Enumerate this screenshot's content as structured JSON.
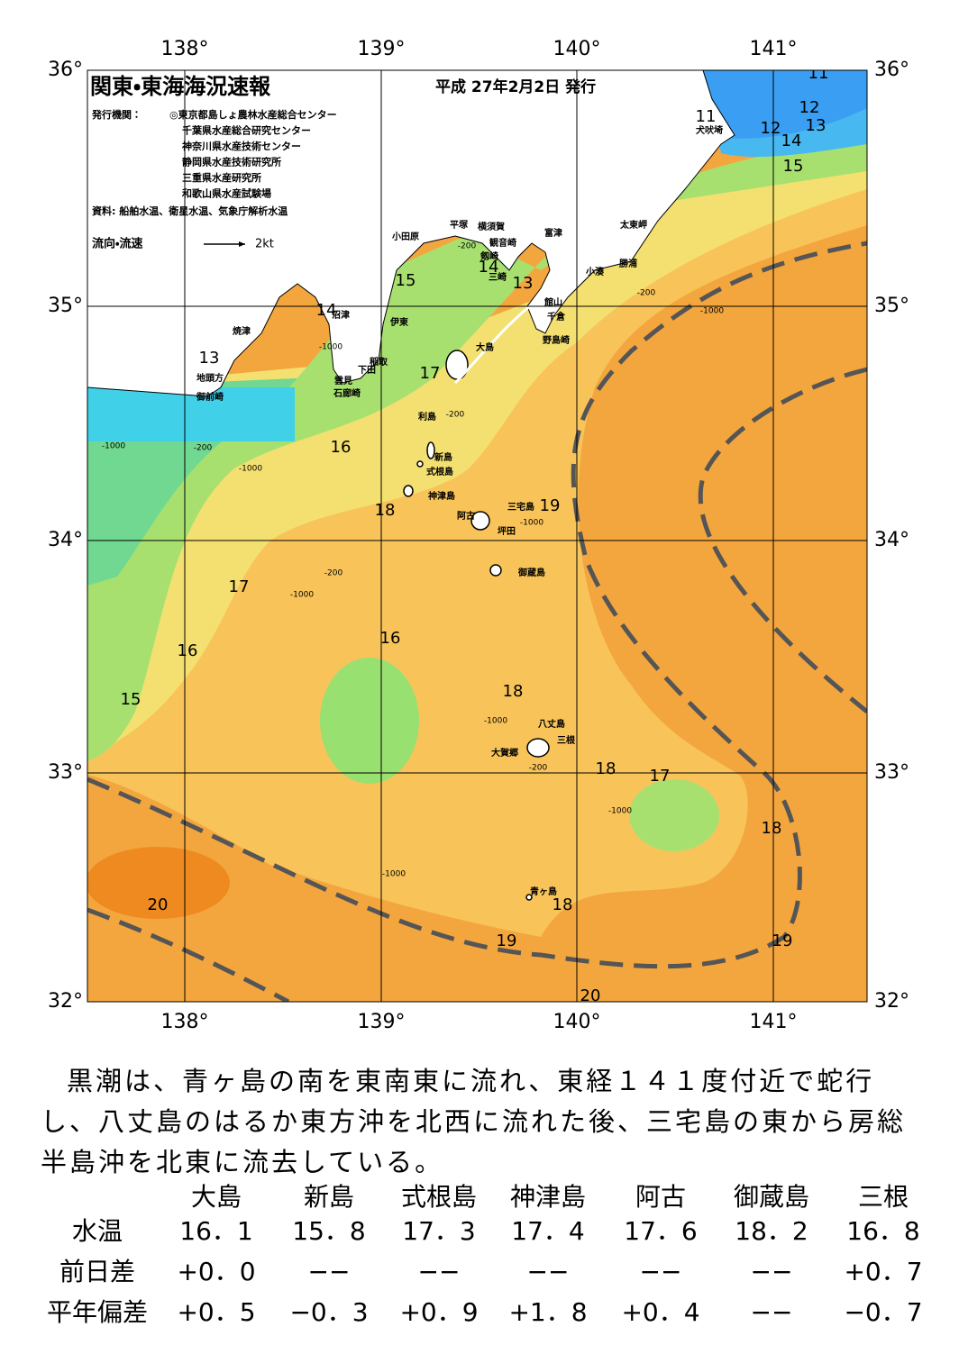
{
  "header": {
    "title": "関東・東海海況速報",
    "issue_date": "平成 27年2月2日 発行",
    "issuers_label": "発行機関：",
    "issuers": [
      "◎東京都島しょ農林水産総合センター",
      "千葉県水産総合研究センター",
      "神奈川県水産技術センター",
      "静岡県水産技術研究所",
      "三重県水産研究所",
      "和歌山県水産試験場"
    ],
    "sources": "資料: 船舶水温、衛星水温、気象庁解析水温",
    "legend_label": "流向・流速",
    "legend_scale": "2kt"
  },
  "axes": {
    "longitudes": [
      "138°",
      "139°",
      "140°",
      "141°"
    ],
    "latitudes": [
      "36°",
      "35°",
      "34°",
      "33°",
      "32°"
    ]
  },
  "contour_labels": [
    "11",
    "12",
    "13",
    "11",
    "12",
    "14",
    "15",
    "14",
    "13",
    "15",
    "14",
    "13",
    "17",
    "16",
    "18",
    "19",
    "17",
    "16",
    "16",
    "15",
    "18",
    "18",
    "17",
    "18",
    "18",
    "20",
    "19",
    "19",
    "20"
  ],
  "depth_labels": [
    "-200",
    "-1000",
    "-200",
    "-1000",
    "-200",
    "-1000",
    "-200",
    "-1000",
    "-1000",
    "-200",
    "-1000",
    "-1000",
    "-1000",
    "-200",
    "-1000"
  ],
  "places": [
    "犬吠埼",
    "太東岬",
    "勝浦",
    "小湊",
    "富津",
    "館山",
    "千倉",
    "野島崎",
    "平塚",
    "横須賀",
    "観音崎",
    "剱崎",
    "三崎",
    "小田原",
    "伊東",
    "沼津",
    "焼津",
    "地頭方",
    "御前崎",
    "雲見",
    "石廊崎",
    "稲取",
    "下田",
    "大島",
    "利島",
    "新島",
    "式根島",
    "神津島",
    "三宅島",
    "阿古",
    "坪田",
    "御蔵島",
    "八丈島",
    "三根",
    "大賀郷",
    "青ヶ島"
  ],
  "summary": "黒潮は、青ヶ島の南を東南東に流れ、東経１４１度付近で蛇行し、八丈島のはるか東方沖を北西に流れた後、三宅島の東から房総半島沖を北東に流去している。",
  "table": {
    "columns": [
      "大島",
      "新島",
      "式根島",
      "神津島",
      "阿古",
      "御蔵島",
      "三根"
    ],
    "rows": [
      {
        "label": "水温",
        "cells": [
          "16．1",
          "15．8",
          "17．3",
          "17．4",
          "17．6",
          "18．2",
          "16．8"
        ]
      },
      {
        "label": "前日差",
        "cells": [
          "+0．0",
          "−−",
          "−−",
          "−−",
          "−−",
          "−−",
          "+0．7"
        ]
      },
      {
        "label": "平年偏差",
        "cells": [
          "+0．5",
          "−0．3",
          "+0．9",
          "+1．8",
          "+0．4",
          "−−",
          "−0．7"
        ]
      }
    ]
  }
}
